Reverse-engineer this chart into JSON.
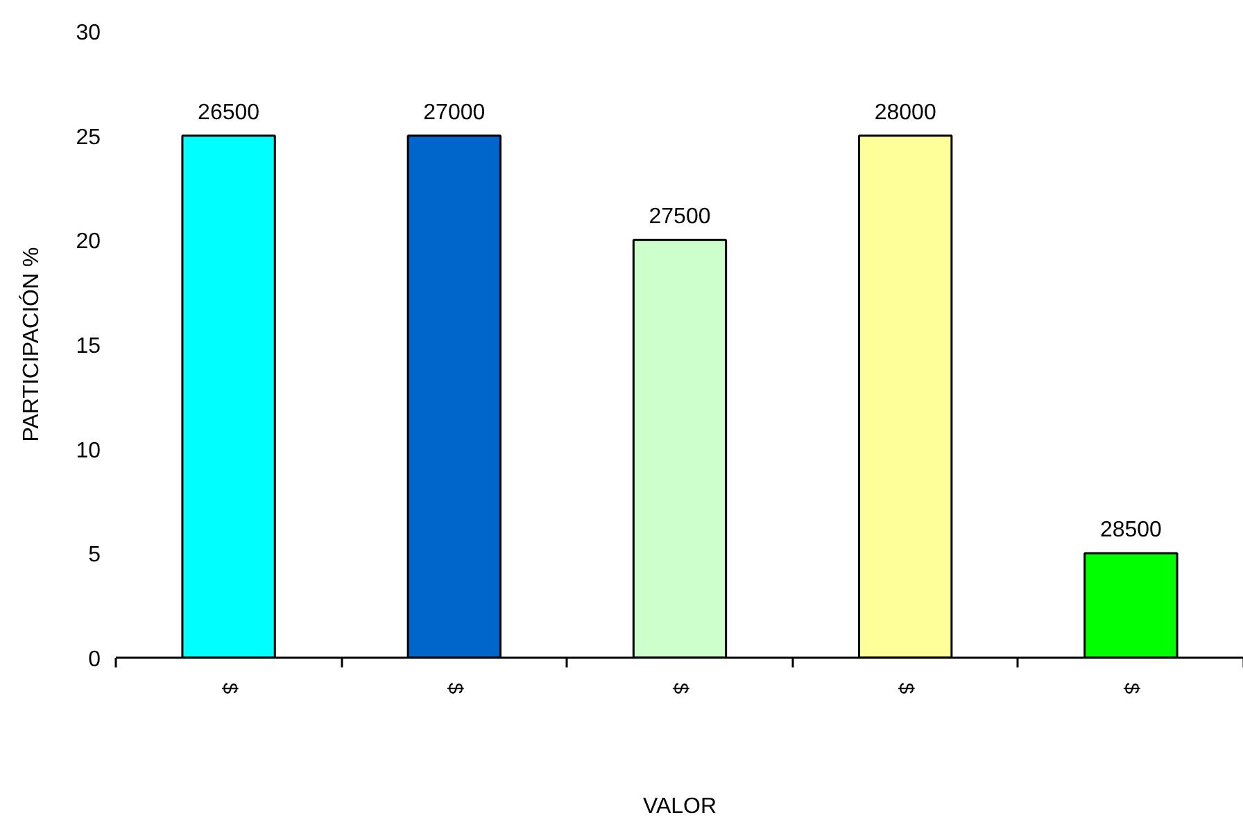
{
  "chart_data": {
    "type": "bar",
    "xlabel": "VALOR",
    "ylabel": "PARTICIPACIÓN %",
    "categories": [
      "$",
      "$",
      "$",
      "$",
      "$"
    ],
    "values": [
      25,
      25,
      20,
      25,
      5
    ],
    "colors": [
      "#00ffff",
      "#0066cc",
      "#ccffcc",
      "#ffff99",
      "#00ff00"
    ],
    "annotations": [
      "26500",
      "27000",
      "27500",
      "28000",
      "28500"
    ],
    "ylim": [
      0,
      30
    ],
    "yticks": [
      0,
      5,
      10,
      15,
      20,
      25,
      30
    ]
  }
}
